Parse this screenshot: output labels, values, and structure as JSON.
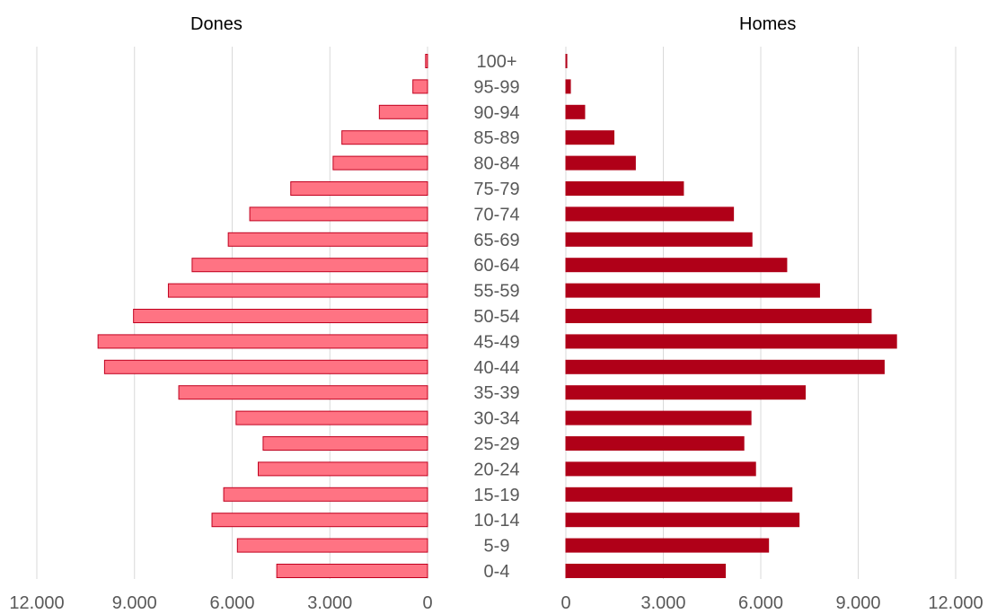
{
  "chart_data": {
    "type": "bar",
    "layout": "population-pyramid",
    "categories": [
      "100+",
      "95-99",
      "90-94",
      "85-89",
      "80-84",
      "75-79",
      "70-74",
      "65-69",
      "60-64",
      "55-59",
      "50-54",
      "45-49",
      "40-44",
      "35-39",
      "30-34",
      "25-29",
      "20-24",
      "15-19",
      "10-14",
      "5-9",
      "0-4"
    ],
    "series": [
      {
        "name": "Dones",
        "color": "#ff7383",
        "stroke": "#c0001e",
        "values": [
          60,
          450,
          1480,
          2630,
          2900,
          4200,
          5460,
          6120,
          7230,
          7960,
          9030,
          10120,
          9920,
          7640,
          5880,
          5050,
          5200,
          6260,
          6620,
          5840,
          4630
        ]
      },
      {
        "name": "Homes",
        "color": "#b00018",
        "stroke": "#b00018",
        "values": [
          30,
          140,
          580,
          1480,
          2140,
          3620,
          5160,
          5730,
          6800,
          7810,
          9400,
          10180,
          9800,
          7370,
          5700,
          5480,
          5840,
          6960,
          7180,
          6240,
          4910
        ]
      }
    ],
    "xlim": [
      0,
      12000
    ],
    "ticks": [
      "12.000",
      "9.000",
      "6.000",
      "3.000",
      "0"
    ],
    "ticks_right": [
      "0",
      "3.000",
      "6.000",
      "9.000",
      "12.000"
    ],
    "grid": true
  }
}
